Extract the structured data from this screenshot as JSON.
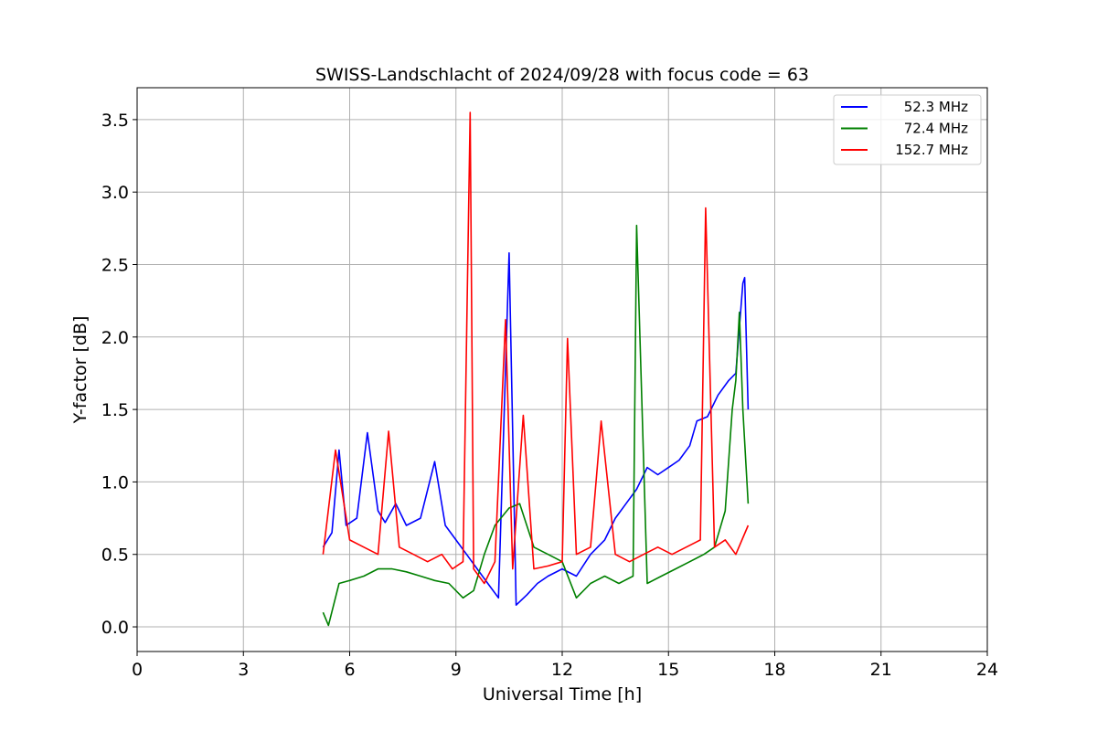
{
  "chart_data": {
    "type": "line",
    "title": "SWISS-Landschlacht of 2024/09/28 with focus code = 63",
    "xlabel": "Universal Time [h]",
    "ylabel": "Y-factor [dB]",
    "xlim": [
      0,
      24
    ],
    "ylim": [
      -0.17,
      3.72
    ],
    "xticks": [
      0,
      3,
      6,
      9,
      12,
      15,
      18,
      21,
      24
    ],
    "yticks": [
      0.0,
      0.5,
      1.0,
      1.5,
      2.0,
      2.5,
      3.0,
      3.5
    ],
    "xtick_labels": [
      "0",
      "3",
      "6",
      "9",
      "12",
      "15",
      "18",
      "21",
      "24"
    ],
    "ytick_labels": [
      "0.0",
      "0.5",
      "1.0",
      "1.5",
      "2.0",
      "2.5",
      "3.0",
      "3.5"
    ],
    "grid": true,
    "legend_position": "top-right",
    "series": [
      {
        "name": "52.3 MHz",
        "color": "#0000ff",
        "points": [
          [
            5.25,
            0.55
          ],
          [
            5.5,
            0.65
          ],
          [
            5.7,
            1.22
          ],
          [
            5.9,
            0.7
          ],
          [
            6.2,
            0.75
          ],
          [
            6.5,
            1.34
          ],
          [
            6.8,
            0.8
          ],
          [
            7.0,
            0.72
          ],
          [
            7.3,
            0.85
          ],
          [
            7.6,
            0.7
          ],
          [
            8.0,
            0.75
          ],
          [
            8.4,
            1.14
          ],
          [
            8.7,
            0.7
          ],
          [
            9.0,
            0.6
          ],
          [
            9.3,
            0.5
          ],
          [
            9.6,
            0.4
          ],
          [
            9.9,
            0.3
          ],
          [
            10.2,
            0.2
          ],
          [
            10.5,
            2.58
          ],
          [
            10.7,
            0.15
          ],
          [
            11.0,
            0.22
          ],
          [
            11.3,
            0.3
          ],
          [
            11.6,
            0.35
          ],
          [
            12.0,
            0.4
          ],
          [
            12.4,
            0.35
          ],
          [
            12.8,
            0.5
          ],
          [
            13.2,
            0.6
          ],
          [
            13.5,
            0.75
          ],
          [
            13.8,
            0.85
          ],
          [
            14.1,
            0.95
          ],
          [
            14.4,
            1.1
          ],
          [
            14.7,
            1.05
          ],
          [
            15.0,
            1.1
          ],
          [
            15.3,
            1.15
          ],
          [
            15.6,
            1.25
          ],
          [
            15.8,
            1.42
          ],
          [
            16.1,
            1.45
          ],
          [
            16.4,
            1.6
          ],
          [
            16.7,
            1.7
          ],
          [
            16.9,
            1.75
          ],
          [
            17.1,
            2.37
          ],
          [
            17.15,
            2.41
          ],
          [
            17.25,
            1.5
          ]
        ]
      },
      {
        "name": "72.4 MHz",
        "color": "#008000",
        "points": [
          [
            5.25,
            0.1
          ],
          [
            5.4,
            0.01
          ],
          [
            5.7,
            0.3
          ],
          [
            6.0,
            0.32
          ],
          [
            6.4,
            0.35
          ],
          [
            6.8,
            0.4
          ],
          [
            7.2,
            0.4
          ],
          [
            7.6,
            0.38
          ],
          [
            8.0,
            0.35
          ],
          [
            8.4,
            0.32
          ],
          [
            8.8,
            0.3
          ],
          [
            9.2,
            0.2
          ],
          [
            9.5,
            0.25
          ],
          [
            9.8,
            0.5
          ],
          [
            10.1,
            0.7
          ],
          [
            10.5,
            0.82
          ],
          [
            10.8,
            0.85
          ],
          [
            11.2,
            0.55
          ],
          [
            11.6,
            0.5
          ],
          [
            12.0,
            0.45
          ],
          [
            12.4,
            0.2
          ],
          [
            12.8,
            0.3
          ],
          [
            13.2,
            0.35
          ],
          [
            13.6,
            0.3
          ],
          [
            14.0,
            0.35
          ],
          [
            14.1,
            2.77
          ],
          [
            14.4,
            0.3
          ],
          [
            14.8,
            0.35
          ],
          [
            15.2,
            0.4
          ],
          [
            15.6,
            0.45
          ],
          [
            16.0,
            0.5
          ],
          [
            16.3,
            0.55
          ],
          [
            16.6,
            0.8
          ],
          [
            16.8,
            1.5
          ],
          [
            16.9,
            1.7
          ],
          [
            17.0,
            2.17
          ],
          [
            17.1,
            1.5
          ],
          [
            17.25,
            0.85
          ]
        ]
      },
      {
        "name": "152.7 MHz",
        "color": "#ff0000",
        "points": [
          [
            5.25,
            0.5
          ],
          [
            5.6,
            1.22
          ],
          [
            6.0,
            0.6
          ],
          [
            6.4,
            0.55
          ],
          [
            6.8,
            0.5
          ],
          [
            7.1,
            1.35
          ],
          [
            7.4,
            0.55
          ],
          [
            7.8,
            0.5
          ],
          [
            8.2,
            0.45
          ],
          [
            8.6,
            0.5
          ],
          [
            8.9,
            0.4
          ],
          [
            9.2,
            0.45
          ],
          [
            9.4,
            3.55
          ],
          [
            9.5,
            0.4
          ],
          [
            9.8,
            0.3
          ],
          [
            10.1,
            0.45
          ],
          [
            10.4,
            2.12
          ],
          [
            10.6,
            0.4
          ],
          [
            10.9,
            1.46
          ],
          [
            11.2,
            0.4
          ],
          [
            11.6,
            0.42
          ],
          [
            12.0,
            0.45
          ],
          [
            12.15,
            1.99
          ],
          [
            12.4,
            0.5
          ],
          [
            12.8,
            0.55
          ],
          [
            13.1,
            1.42
          ],
          [
            13.5,
            0.5
          ],
          [
            13.9,
            0.45
          ],
          [
            14.3,
            0.5
          ],
          [
            14.7,
            0.55
          ],
          [
            15.1,
            0.5
          ],
          [
            15.5,
            0.55
          ],
          [
            15.9,
            0.6
          ],
          [
            16.05,
            2.89
          ],
          [
            16.3,
            0.55
          ],
          [
            16.6,
            0.6
          ],
          [
            16.9,
            0.5
          ],
          [
            17.25,
            0.7
          ]
        ]
      }
    ]
  }
}
